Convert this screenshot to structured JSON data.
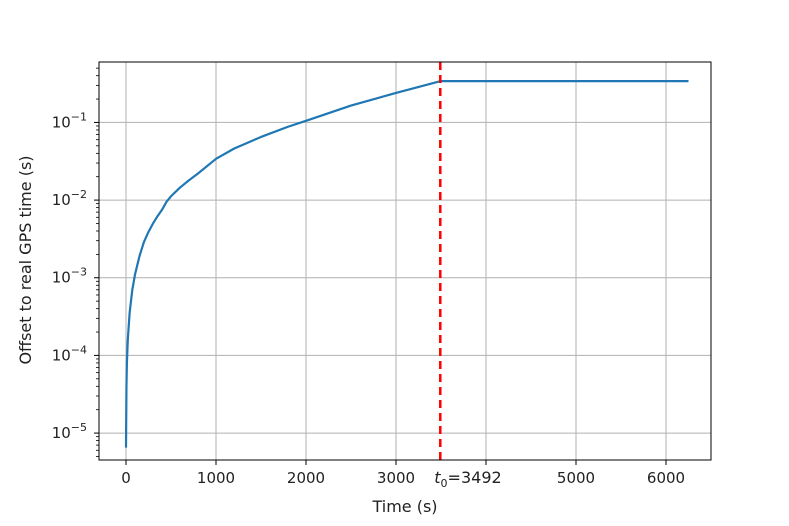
{
  "chart_data": {
    "type": "line",
    "title": "",
    "xlabel": "Time (s)",
    "ylabel": "Offset to real GPS time (s)",
    "yscale": "log",
    "xlim": [
      -300,
      6500
    ],
    "ylim": [
      4.5e-06,
      0.6
    ],
    "grid": true,
    "x_ticks": [
      0,
      1000,
      2000,
      3000,
      5000,
      6000
    ],
    "y_ticks": [
      {
        "value": 1e-05,
        "base": "10",
        "exp": "−5"
      },
      {
        "value": 0.0001,
        "base": "10",
        "exp": "−4"
      },
      {
        "value": 0.001,
        "base": "10",
        "exp": "−3"
      },
      {
        "value": 0.01,
        "base": "10",
        "exp": "−2"
      },
      {
        "value": 0.1,
        "base": "10",
        "exp": "−1"
      }
    ],
    "series": [
      {
        "color": "#1f77b4",
        "x": [
          0,
          5,
          10,
          20,
          40,
          70,
          100,
          150,
          200,
          250,
          300,
          350,
          400,
          450,
          500,
          600,
          700,
          800,
          1000,
          1200,
          1500,
          1800,
          2000,
          2500,
          3000,
          3492,
          4000,
          5000,
          6000,
          6250
        ],
        "y": [
          6.5e-06,
          4e-05,
          8e-05,
          0.00016,
          0.00035,
          0.0007,
          0.0011,
          0.0019,
          0.0029,
          0.0039,
          0.005,
          0.0062,
          0.0075,
          0.0095,
          0.0112,
          0.0145,
          0.018,
          0.022,
          0.034,
          0.046,
          0.065,
          0.088,
          0.105,
          0.165,
          0.24,
          0.34,
          0.34,
          0.34,
          0.34,
          0.34
        ]
      }
    ],
    "vline": {
      "x": 3492,
      "color": "#ff0000",
      "style": "dashed",
      "label_main": "t",
      "label_sub": "0",
      "label_rest": "=3492"
    }
  }
}
